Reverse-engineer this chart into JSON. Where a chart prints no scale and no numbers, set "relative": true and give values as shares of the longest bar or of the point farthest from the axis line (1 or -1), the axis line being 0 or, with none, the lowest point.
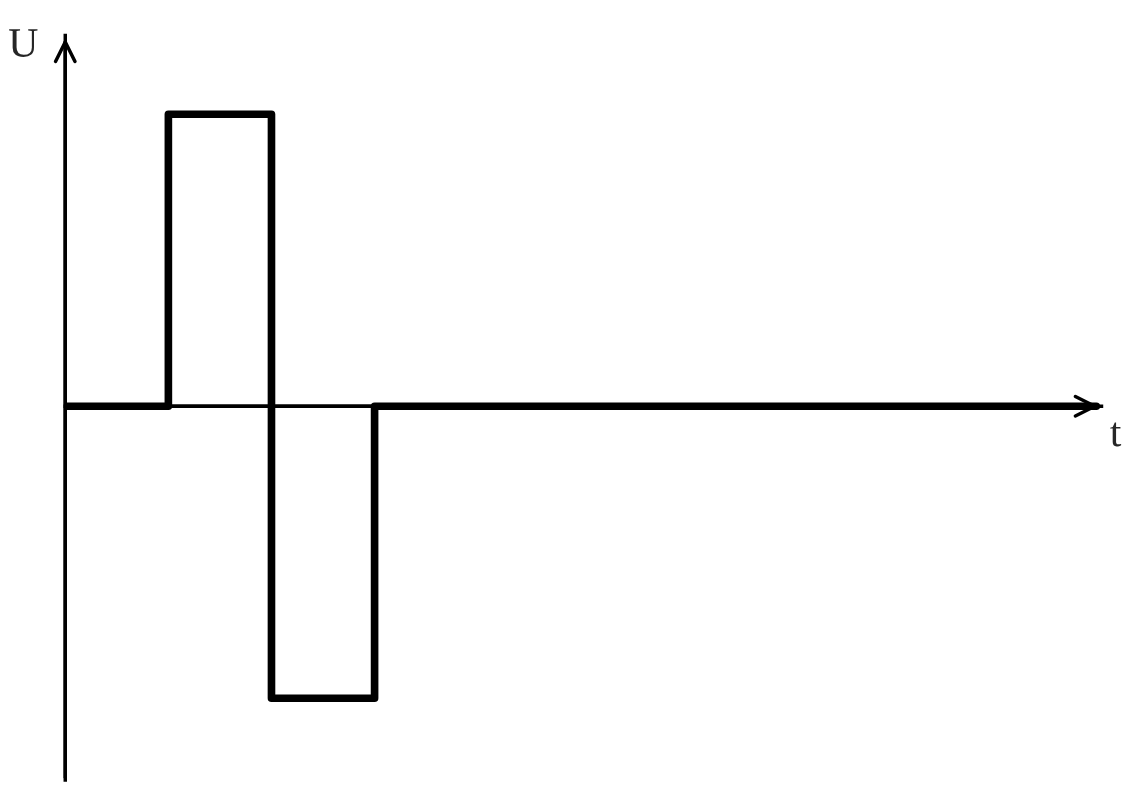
{
  "chart_data": {
    "type": "step",
    "relative": true,
    "xlabel": "t",
    "ylabel": "U",
    "categories": [
      null,
      null,
      null,
      null,
      null,
      null,
      null,
      null,
      null,
      null,
      null
    ],
    "series": [
      {
        "color": "#000000",
        "values": [
          0,
          1,
          -1,
          0,
          0,
          0,
          0,
          0,
          0,
          0,
          0
        ]
      }
    ],
    "marker": "none",
    "line_style": "solid",
    "tick_labels": false
  }
}
